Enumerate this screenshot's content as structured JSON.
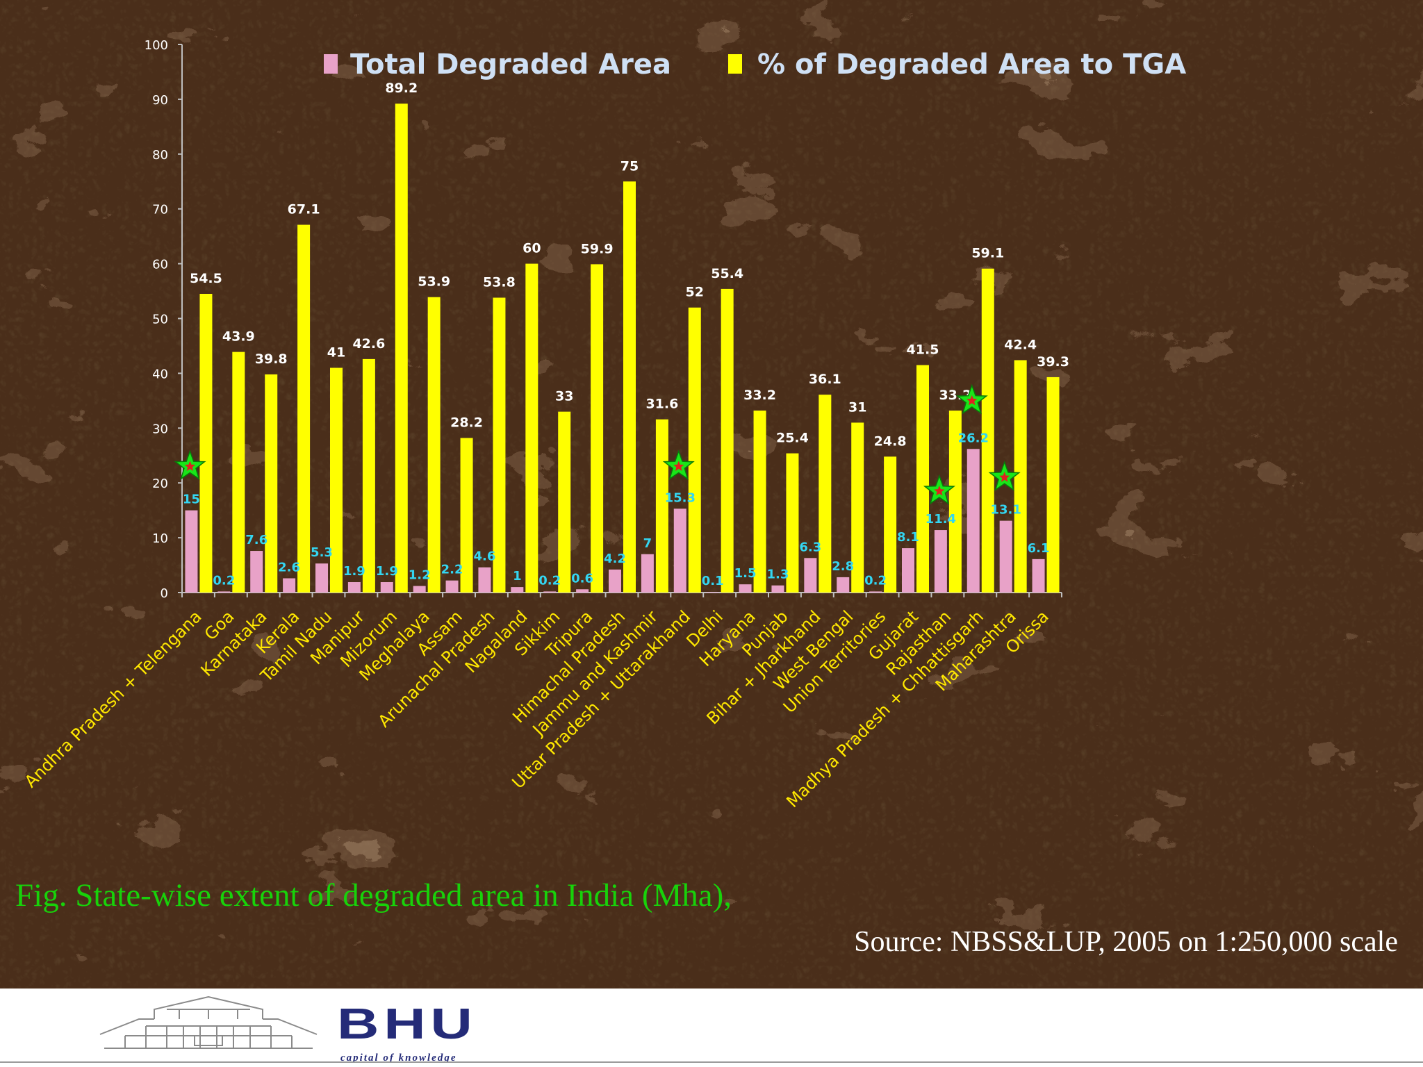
{
  "chart_data": {
    "type": "bar",
    "title": "",
    "xlabel": "",
    "ylabel": "",
    "ylim": [
      0,
      100
    ],
    "yticks": [
      0,
      10,
      20,
      30,
      40,
      50,
      60,
      70,
      80,
      90,
      100
    ],
    "grid": false,
    "legend_position": "top",
    "categories": [
      "Andhra Pradesh + Telengana",
      "Goa",
      "Karnataka",
      "Kerala",
      "Tamil Nadu",
      "Manipur",
      "Mizorum",
      "Meghalaya",
      "Assam",
      "Arunachal Pradesh",
      "Nagaland",
      "Sikkim",
      "Tripura",
      "Himachal Pradesh",
      "Jammu and Kashmir",
      "Uttar Pradesh + Uttarakhand",
      "Delhi",
      "Haryana",
      "Punjab",
      "Bihar + Jharkhand",
      "West Bengal",
      "Union Territories",
      "Gujarat",
      "Rajasthan",
      "Madhya Pradesh + Chhattisgarh",
      "Maharashtra",
      "Orissa"
    ],
    "series": [
      {
        "name": "Total Degraded Area",
        "color": "#e8a2c8",
        "values": [
          15,
          0.2,
          7.6,
          2.6,
          5.3,
          1.9,
          1.9,
          1.2,
          2.2,
          4.6,
          1,
          0.2,
          0.6,
          4.2,
          7,
          15.3,
          0.1,
          1.5,
          1.3,
          6.3,
          2.8,
          0.2,
          8.1,
          11.4,
          26.2,
          13.1,
          6.1
        ]
      },
      {
        "name": "% of Degraded Area to TGA",
        "color": "#ffff00",
        "values": [
          54.5,
          43.9,
          39.8,
          67.1,
          41,
          42.6,
          89.2,
          53.9,
          28.2,
          53.8,
          60,
          33,
          59.9,
          75,
          31.6,
          52,
          55.4,
          33.2,
          25.4,
          36.1,
          31,
          24.8,
          41.5,
          33.2,
          59.1,
          42.4,
          39.3
        ]
      }
    ],
    "star_markers": [
      {
        "category": "Andhra Pradesh + Telengana",
        "value": 23
      },
      {
        "category": "Uttar Pradesh + Uttarakhand",
        "value": 23
      },
      {
        "category": "Rajasthan",
        "value": 18.5
      },
      {
        "category": "Madhya Pradesh + Chhattisgarh",
        "value": 35
      },
      {
        "category": "Maharashtra",
        "value": 21
      }
    ],
    "colors": {
      "label_yellow_series": "#ffffff",
      "label_pink_series": "#33d6f2",
      "category_labels": "#ffe800",
      "star_fill": "#19e619",
      "star_inner": "#e02020"
    }
  },
  "caption": "Fig. State-wise extent of degraded area in India (Mha),",
  "source": "Source: NBSS&LUP, 2005  on 1:250,000 scale",
  "footer": {
    "logo_text": "BHU",
    "logo_tagline": "capital of knowledge"
  }
}
